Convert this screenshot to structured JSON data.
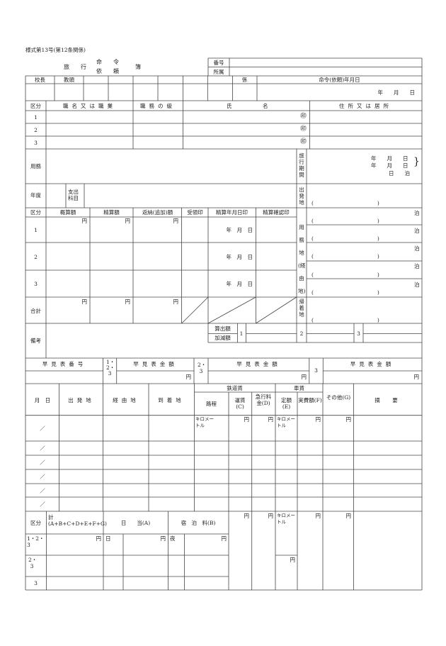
{
  "form_id": "様式第13号(第12条関係)",
  "title": {
    "a": "旅　　行",
    "b_top": "命　　令",
    "b_bottom": "依　　頼",
    "c": "簿"
  },
  "top_box": {
    "number": "番号",
    "dept": "所属"
  },
  "approval": {
    "principal": "校長",
    "vice": "教頭",
    "staff": "係",
    "order_date": "命令(依頼)年月日",
    "ymd": "年　　月　　日"
  },
  "persons": {
    "headers": [
      "区分",
      "職名又は職業",
      "職務の級",
      "氏",
      "名",
      "住所又は居所"
    ],
    "rows": [
      "1",
      "2",
      "3"
    ],
    "seal": "㊞"
  },
  "purpose": {
    "label": "用務",
    "period_label": "旅行期間",
    "period_line1": "年　　月　　日",
    "period_line2": "年　　月　　日",
    "nights": "日　　泊"
  },
  "fiscal": {
    "year": "年度",
    "account": "支出科目",
    "departure": "出発地"
  },
  "paren": "(　　　　　　　　　　　　)",
  "settle": {
    "headers": [
      "区分",
      "概算額",
      "精算額",
      "返納(追加)額",
      "受領印",
      "精算年月日印",
      "精算確認印"
    ],
    "rows": [
      "1",
      "2",
      "3"
    ],
    "yen": "円",
    "ymd": "年　月　日",
    "total": "合計",
    "destination": "用務地(経由地)",
    "stay": "泊",
    "return": "帰着地"
  },
  "remarks": {
    "label": "備考",
    "calc": "算出額",
    "adjust": "加減額",
    "nums": [
      "1",
      "2",
      "3"
    ]
  },
  "quick": {
    "number": "早見表番号",
    "amount": "早見表金額",
    "g123": "1・2・3",
    "g23": "2・3",
    "g3": "3"
  },
  "itinerary": {
    "headers": {
      "date": "月　日",
      "from": "出発地",
      "via": "経由地",
      "to": "到着地",
      "rail": "鉄道賃",
      "car": "車賃",
      "distance": "路程",
      "fare": "運賃(C)",
      "express": "急行料金(D)",
      "fixed": "定額(E)",
      "actual": "実費額(F)",
      "other": "その他(G)",
      "summary": "摘　要"
    },
    "km": "キロメートル",
    "date_mark": "／"
  },
  "totals": {
    "class": "区分",
    "sum": "計(A+B+C+D+E+F+G)",
    "daily": "日　　当(A)",
    "lodging": "宿　泊　料(B)",
    "day": "日",
    "night": "夜",
    "rows": [
      "1・2・3",
      "2・3",
      "3"
    ]
  }
}
